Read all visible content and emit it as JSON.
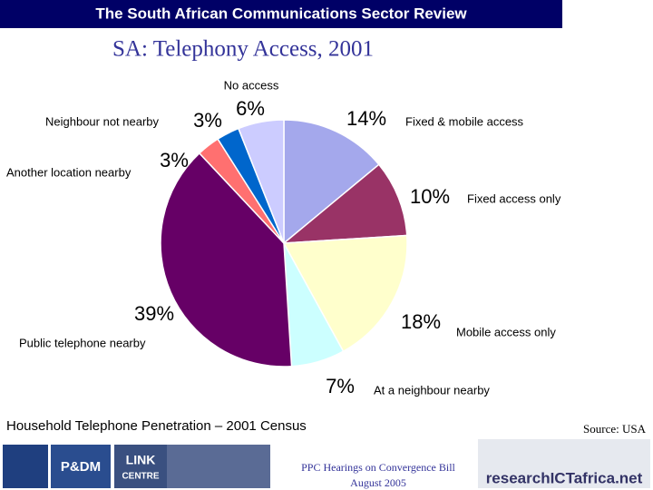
{
  "header": {
    "title": "The South African Communications Sector Review"
  },
  "chart_data": {
    "type": "pie",
    "title": "SA:  Telephony Access, 2001",
    "categories": [
      "Fixed & mobile access",
      "Fixed access only",
      "Mobile access only",
      "At a neighbour nearby",
      "Public telephone nearby",
      "Another location nearby",
      "Neighbour not nearby",
      "No access"
    ],
    "values": [
      14,
      10,
      18,
      7,
      39,
      3,
      3,
      6
    ],
    "value_labels": [
      "14%",
      "10%",
      "18%",
      "7%",
      "39%",
      "3%",
      "3%",
      "6%"
    ],
    "colors": [
      "#a4a8ec",
      "#993366",
      "#ffffcc",
      "#ccffff",
      "#660066",
      "#ff7070",
      "#0066cc",
      "#ccccff"
    ]
  },
  "caption": "Household Telephone Penetration – 2001 Census",
  "source": "Source:  USA",
  "footer": {
    "line1": "PPC Hearings on Convergence Bill",
    "line2": "August 2005"
  },
  "logos": {
    "pdm": "P&DM",
    "link": "LINK",
    "centre": "CENTRE",
    "research": "researchICTafrica.net"
  }
}
